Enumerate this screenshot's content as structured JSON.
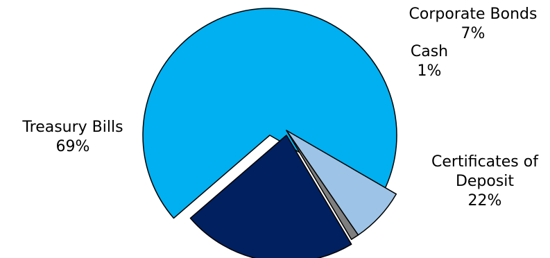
{
  "chart_data": {
    "type": "pie",
    "title": "",
    "slices": [
      {
        "label": [
          "Treasury Bills"
        ],
        "percent_label": "69%",
        "value": 69,
        "color": "#00B0F0",
        "exploded": false
      },
      {
        "label": [
          "Corporate Bonds"
        ],
        "percent_label": "7%",
        "value": 7,
        "color": "#9DC3E6",
        "exploded": true
      },
      {
        "label": [
          "Cash"
        ],
        "percent_label": "1%",
        "value": 1,
        "color": "#7F7F7F",
        "exploded": true
      },
      {
        "label": [
          "Certificates of",
          "Deposit"
        ],
        "percent_label": "22%",
        "value": 22,
        "color": "#002060",
        "exploded": true
      }
    ],
    "legend": "none"
  }
}
